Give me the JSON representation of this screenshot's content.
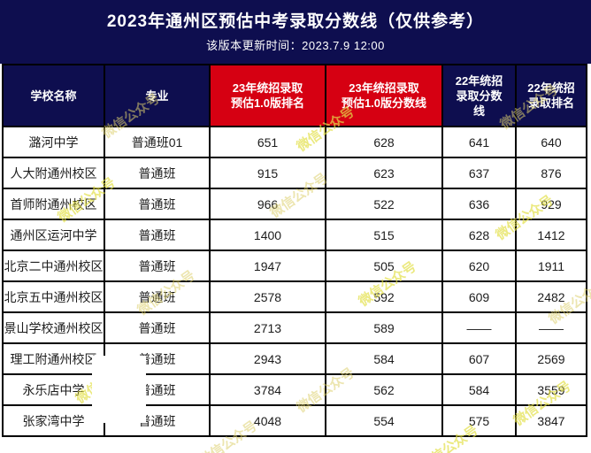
{
  "header": {
    "title": "2023年通州区预估中考录取分数线（仅供参考）",
    "subtitle": "该版本更新时间：2023.7.9 12:00"
  },
  "colors": {
    "navy": "#0e0e4f",
    "red": "#d60012",
    "cream_cell": "#fdf8e6",
    "border": "#000000",
    "watermark": "#ddd06e"
  },
  "watermark": {
    "text": "微信公众号"
  },
  "table": {
    "headers": [
      {
        "style": "navy",
        "lines": [
          "学校名称"
        ]
      },
      {
        "style": "navy",
        "lines": [
          "专业"
        ]
      },
      {
        "style": "red",
        "lines": [
          "23年统招录取",
          "预估1.0版排名"
        ]
      },
      {
        "style": "red",
        "lines": [
          "23年统招录取",
          "预估1.0版分数线"
        ]
      },
      {
        "style": "navy",
        "lines": [
          "22年统招",
          "录取分数",
          "线"
        ]
      },
      {
        "style": "navy",
        "lines": [
          "22年统招",
          "录取排名"
        ]
      }
    ],
    "rows": [
      {
        "cells": [
          "潞河中学",
          "普通班01",
          "651",
          "628",
          "641",
          "640"
        ]
      },
      {
        "cells": [
          "人大附通州校区",
          "普通班",
          "915",
          "623",
          "637",
          "876"
        ]
      },
      {
        "cells": [
          "首师附通州校区",
          "普通班",
          "966",
          "522",
          "636",
          "929"
        ]
      },
      {
        "cells": [
          "通州区运河中学",
          "普通班",
          "1400",
          "515",
          "628",
          "1412"
        ]
      },
      {
        "cells": [
          "北京二中通州校区",
          "普通班",
          "1947",
          "505",
          "620",
          "1911"
        ]
      },
      {
        "cells": [
          "北京五中通州校区",
          "普通班",
          "2578",
          "592",
          "609",
          "2482"
        ]
      },
      {
        "cells": [
          "景山学校通州校区",
          "普通班",
          "2713",
          "589",
          "——",
          "——"
        ]
      },
      {
        "cells": [
          "理工附通州校区",
          "普通班",
          "2943",
          "584",
          "607",
          "2569"
        ]
      },
      {
        "cells": [
          "永乐店中学",
          "普通班",
          "3784",
          "562",
          "584",
          "3559"
        ]
      },
      {
        "cells": [
          "张家湾中学",
          "普通班",
          "4048",
          "554",
          "575",
          "3847"
        ]
      }
    ]
  }
}
